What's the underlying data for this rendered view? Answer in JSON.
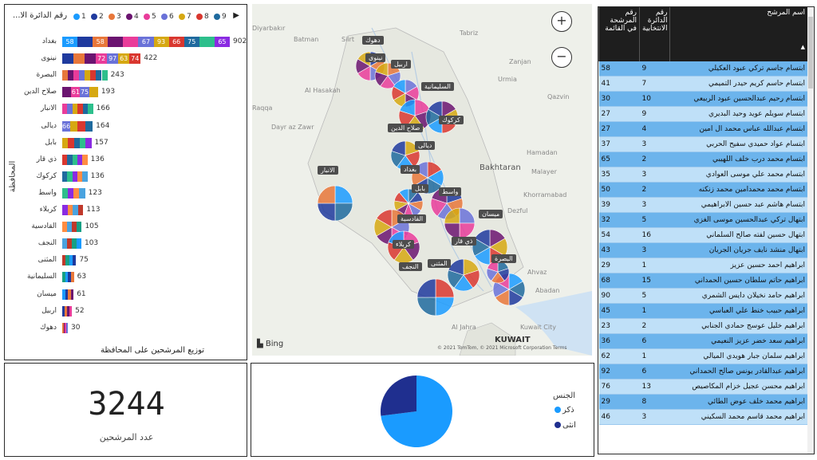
{
  "bar_chart": {
    "legend_title": "رقم الدائرة الا...",
    "legend": [
      {
        "label": "1",
        "color": "#1a9bff"
      },
      {
        "label": "2",
        "color": "#1f3a9e"
      },
      {
        "label": "3",
        "color": "#e8773a"
      },
      {
        "label": "4",
        "color": "#6b1470"
      },
      {
        "label": "5",
        "color": "#e93c9a"
      },
      {
        "label": "6",
        "color": "#6a72d8"
      },
      {
        "label": "7",
        "color": "#d6a812"
      },
      {
        "label": "8",
        "color": "#d9372f"
      },
      {
        "label": "9",
        "color": "#1f6a9e"
      }
    ],
    "y_axis_label": "المحافظة",
    "x_axis_label": "توزيع المرشحين على المحافظة"
  },
  "chart_data": {
    "type": "bar",
    "orientation": "horizontal",
    "stacked": true,
    "categories": [
      "بغداد",
      "نينوى",
      "البصرة",
      "صلاح الدين",
      "الانبار",
      "ديالى",
      "بابل",
      "ذي قار",
      "كركوك",
      "واسط",
      "كربلاء",
      "القادسية",
      "النجف",
      "المثنى",
      "السليمانية",
      "ميسان",
      "اربيل",
      "دهوك"
    ],
    "totals": [
      902,
      422,
      243,
      193,
      166,
      164,
      157,
      136,
      136,
      123,
      113,
      105,
      103,
      75,
      63,
      61,
      52,
      30
    ],
    "segment_labels": [
      [
        "58",
        "",
        "58",
        "",
        "",
        "67",
        "93",
        "66",
        "75",
        "",
        "65"
      ],
      [
        "",
        "",
        "",
        "72",
        "97",
        "63",
        "74"
      ],
      [],
      [
        "",
        "61",
        "75"
      ],
      [],
      [
        "66"
      ],
      [],
      [],
      [],
      [],
      [],
      [],
      [],
      [],
      [],
      [],
      [],
      []
    ],
    "title": "",
    "xlabel": "توزيع المرشحين على المحافظة",
    "ylabel": "المحافظة"
  },
  "map": {
    "labels": [
      "دهوك",
      "نينوى",
      "اربيل",
      "السليمانية",
      "كركوك",
      "صلاح الدين",
      "ديالى",
      "بغداد",
      "الانبار",
      "بابل",
      "واسط",
      "القادسية",
      "ميسان",
      "كربلاء",
      "ذي قار",
      "المثنى",
      "النجف",
      "البصرة"
    ],
    "cities": [
      "Diyarbakır",
      "Batman",
      "Siirt",
      "Tabriz",
      "Al Hasakah",
      "Urmia",
      "Raqqa",
      "Zanjan",
      "Qazvin",
      "Dayr az Zawr",
      "Hamadan",
      "Bakhtaran",
      "Malayer",
      "Khorramabad",
      "Dezful",
      "Ahvaz",
      "Al Jahra",
      "KUWAIT",
      "Kuwait City",
      "Abadan"
    ],
    "zoom_in": "+",
    "zoom_out": "−",
    "bing": "Bing",
    "copyright": "© 2021 TomTom, © 2021 Microsoft Corporation  Terms"
  },
  "table": {
    "headers": [
      "اسم المرشح",
      "رقم الدائرة الانتخابية",
      "رقم المرشحة في القائمة"
    ],
    "rows": [
      [
        "ابتسام جاسم تركي عبود العكيلي",
        "9",
        "58"
      ],
      [
        "ابتسام حاسم كريم حيدر التميمي",
        "7",
        "41"
      ],
      [
        "ابتسام رحيم عبدالحسين عبود الربيعي",
        "10",
        "30"
      ],
      [
        "ابتسام سويلم عويد وحيد البديري",
        "9",
        "27"
      ],
      [
        "ابتسام عبدالله عباس محمد ال امين",
        "4",
        "27"
      ],
      [
        "ابتسام عواد حميدي سفيح الحربي",
        "3",
        "37"
      ],
      [
        "ابتسام محمد درب خلف اللهيبي",
        "2",
        "65"
      ],
      [
        "ابتسام محمد علي موسى العوادي",
        "3",
        "35"
      ],
      [
        "ابتسام محمد محمدامين محمد زنكنه",
        "2",
        "50"
      ],
      [
        "ابتسام هاشم عبد حسين الابراهيمي",
        "3",
        "39"
      ],
      [
        "ابتهال تركي عبدالحسين موسى الغزي",
        "5",
        "32"
      ],
      [
        "ابتهال حسين لفته صالح السلماني",
        "16",
        "54"
      ],
      [
        "ابتهال منشد نايف جريان الجريان",
        "3",
        "43"
      ],
      [
        "ابراهيم احمد حسين عزيز",
        "1",
        "29"
      ],
      [
        "ابراهيم حاتم سلطان حسين الحمداني",
        "15",
        "68"
      ],
      [
        "ابراهيم حامد نخيلان دايس الشمري",
        "5",
        "90"
      ],
      [
        "ابراهيم حبيب خنط علي العباسي",
        "1",
        "45"
      ],
      [
        "ابراهيم خليل عوسج حمادي الجنابي",
        "2",
        "23"
      ],
      [
        "ابراهيم سعد خضر عزيز النعيمي",
        "6",
        "36"
      ],
      [
        "ابراهيم سلمان جبار هويدي الميالي",
        "1",
        "62"
      ],
      [
        "ابراهيم عبدالقادر يونس صالح الحمداني",
        "6",
        "92"
      ],
      [
        "ابراهيم محسن عجيل خزام المكاصيص",
        "13",
        "76"
      ],
      [
        "ابراهيم محمد خلف عوض الطائي",
        "8",
        "29"
      ],
      [
        "ابراهيم محمد قاسم محمد السكيني",
        "3",
        "46"
      ]
    ]
  },
  "kpi": {
    "value": "3244",
    "label": "عدد المرشحين"
  },
  "gender_pie": {
    "legend_title": "الجنس",
    "items": [
      {
        "label": "ذكر",
        "value": 0.73,
        "color": "#1a9bff"
      },
      {
        "label": "انثى",
        "value": 0.27,
        "color": "#1f2f8f"
      }
    ]
  }
}
